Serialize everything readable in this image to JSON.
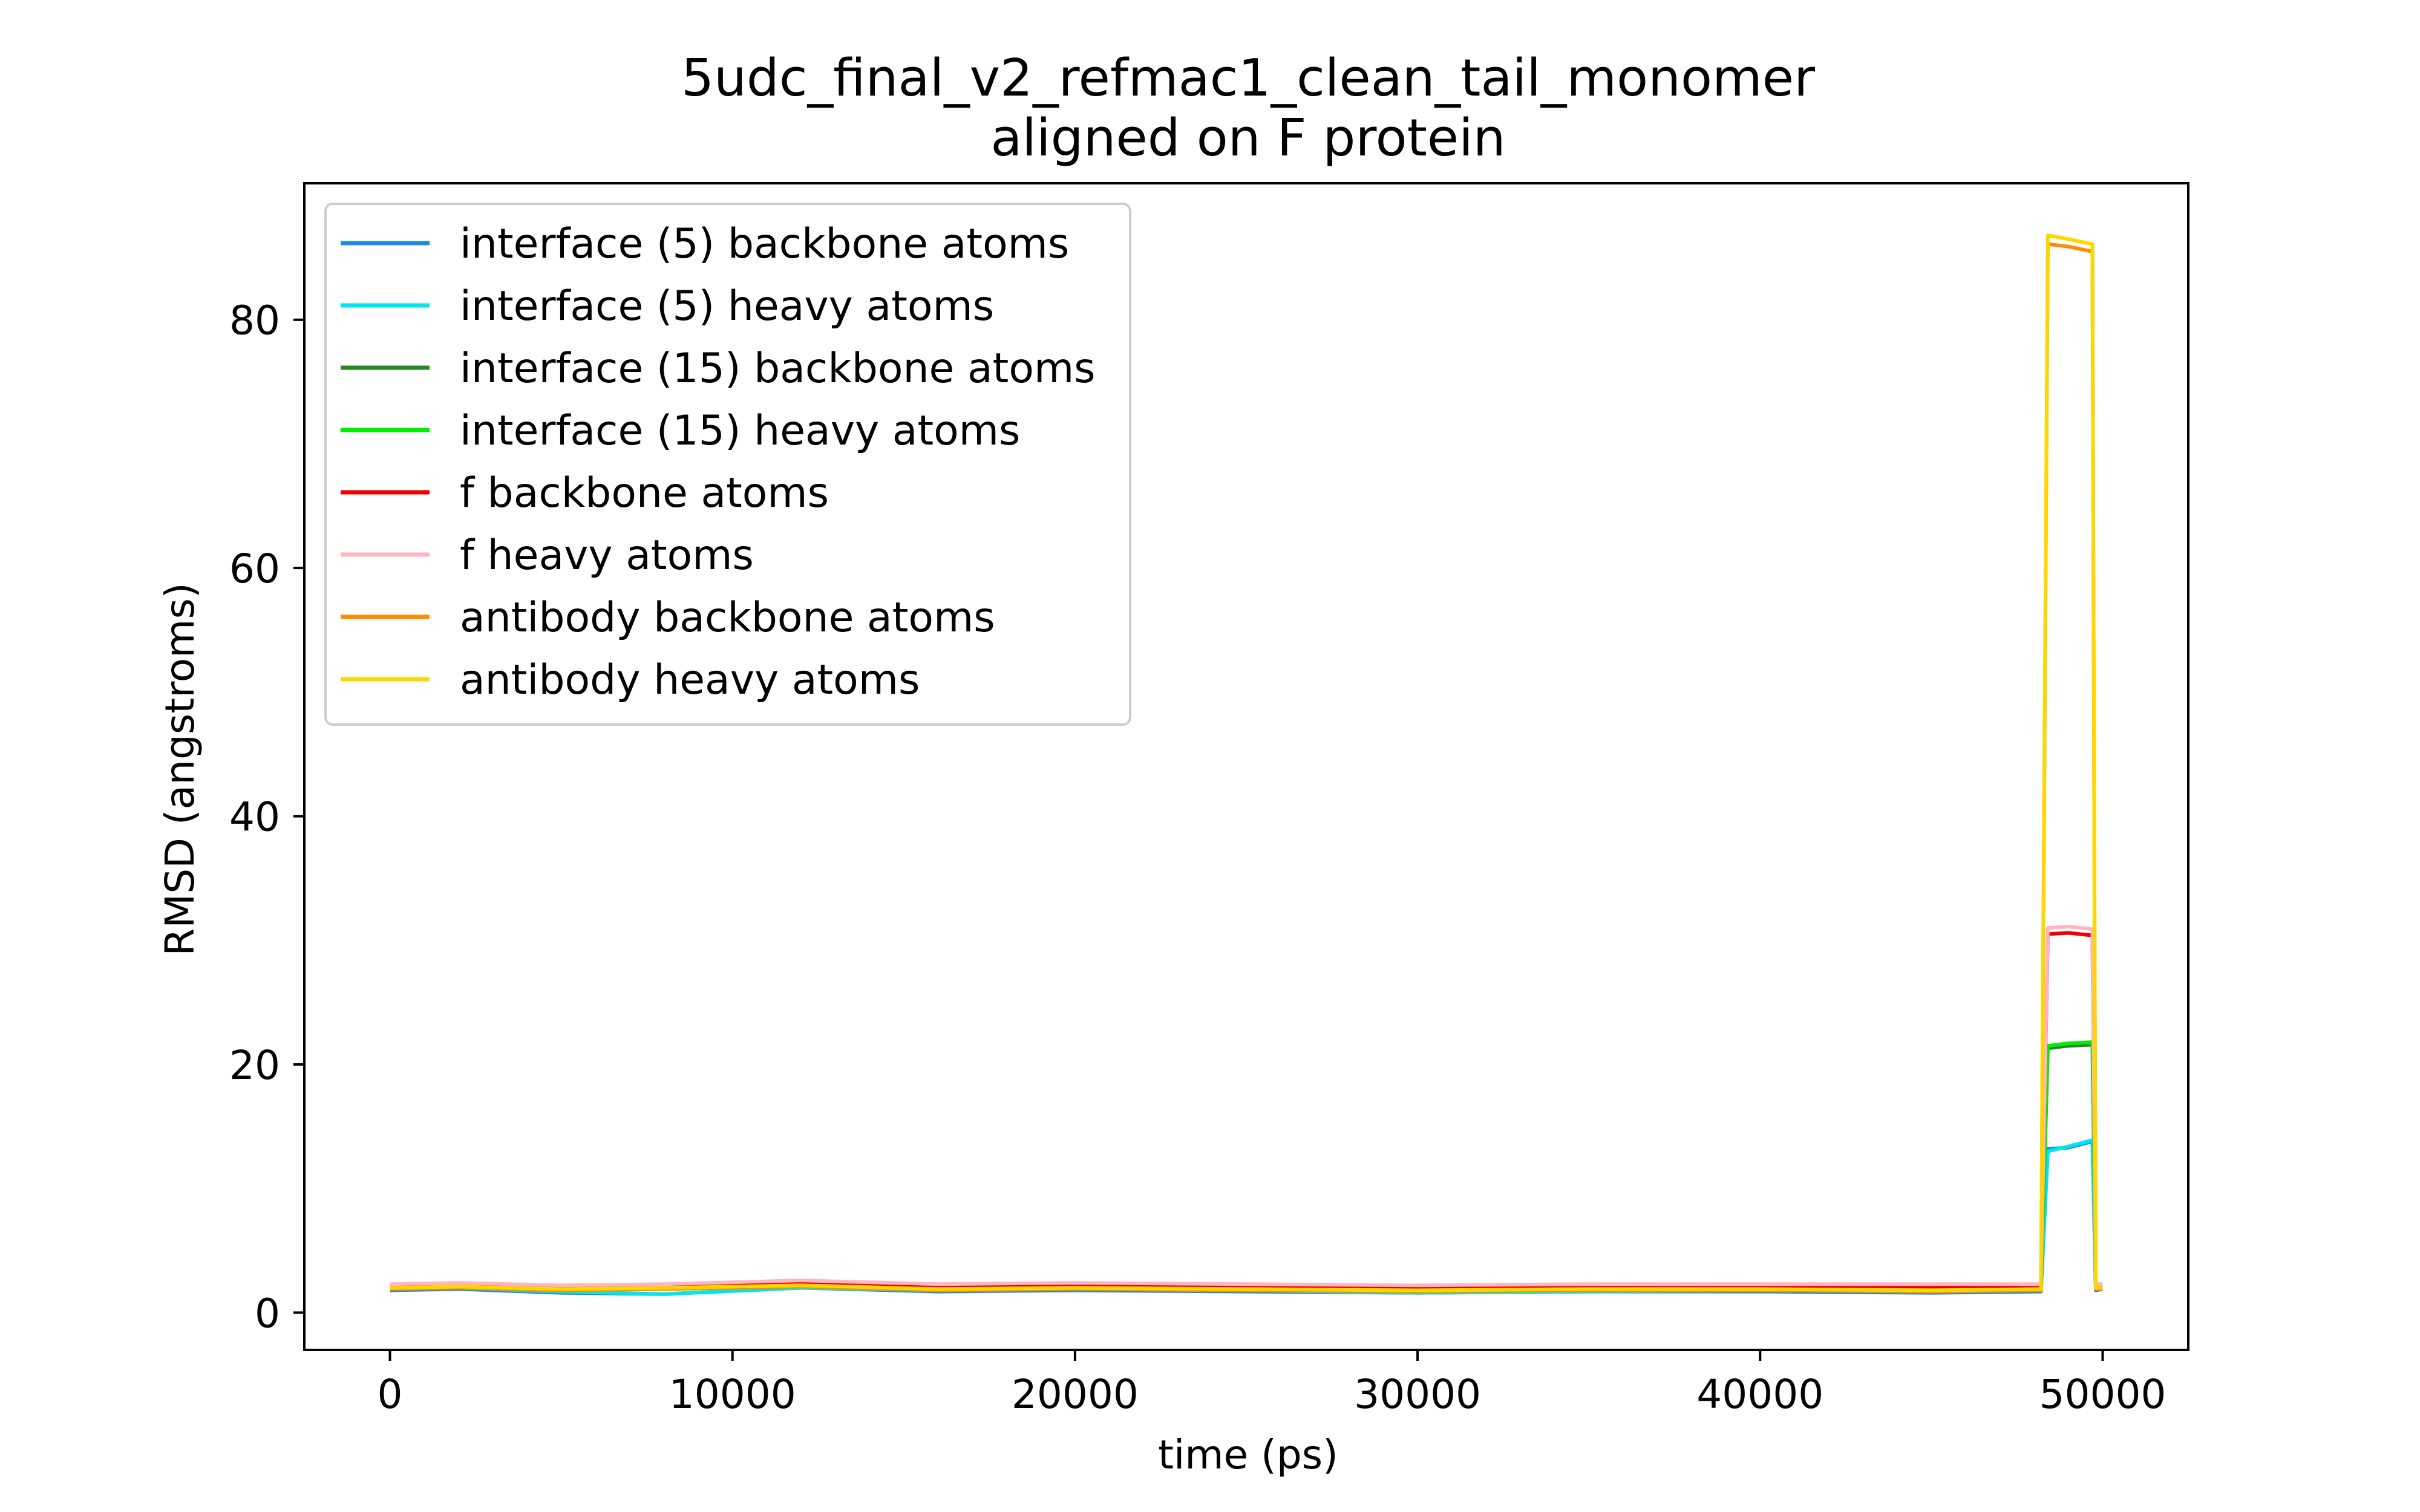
{
  "chart_data": {
    "type": "line",
    "title": "5udc_final_v2_refmac1_clean_tail_monomer",
    "subtitle": "aligned on F protein",
    "xlabel": "time (ps)",
    "ylabel": "RMSD (angstroms)",
    "xlim": [
      -2500,
      52500
    ],
    "ylim": [
      -3,
      91
    ],
    "xticks": [
      0,
      10000,
      20000,
      30000,
      40000,
      50000
    ],
    "yticks": [
      0,
      20,
      40,
      60,
      80
    ],
    "grid": false,
    "legend_position": "upper left",
    "series": [
      {
        "name": "interface (5) backbone atoms",
        "color": "#1e88e5",
        "x": [
          0,
          2000,
          5000,
          8000,
          12000,
          16000,
          20000,
          25000,
          30000,
          35000,
          40000,
          45000,
          48200,
          48400,
          49000,
          49700,
          49800,
          50000
        ],
        "y": [
          1.8,
          1.9,
          1.6,
          1.5,
          2.0,
          1.7,
          1.8,
          1.7,
          1.6,
          1.7,
          1.7,
          1.6,
          1.7,
          13.2,
          13.3,
          13.8,
          1.8,
          1.9
        ]
      },
      {
        "name": "interface (5) heavy atoms",
        "color": "#00e5ee",
        "x": [
          0,
          2000,
          5000,
          8000,
          12000,
          16000,
          20000,
          25000,
          30000,
          35000,
          40000,
          45000,
          48200,
          48400,
          49000,
          49700,
          49800,
          50000
        ],
        "y": [
          1.9,
          2.0,
          1.7,
          1.5,
          2.0,
          1.8,
          1.9,
          1.8,
          1.6,
          1.7,
          1.8,
          1.7,
          1.8,
          13.0,
          13.4,
          13.9,
          1.9,
          2.0
        ]
      },
      {
        "name": "interface (15) backbone atoms",
        "color": "#228b22",
        "x": [
          0,
          2000,
          5000,
          8000,
          12000,
          16000,
          20000,
          25000,
          30000,
          35000,
          40000,
          45000,
          48200,
          48400,
          49000,
          49700,
          49800,
          50000
        ],
        "y": [
          2.0,
          2.1,
          1.9,
          1.9,
          2.2,
          2.0,
          2.0,
          1.9,
          1.9,
          1.9,
          1.9,
          1.9,
          1.9,
          21.3,
          21.5,
          21.6,
          2.0,
          2.0
        ]
      },
      {
        "name": "interface (15) heavy atoms",
        "color": "#00ee00",
        "x": [
          0,
          2000,
          5000,
          8000,
          12000,
          16000,
          20000,
          25000,
          30000,
          35000,
          40000,
          45000,
          48200,
          48400,
          49000,
          49700,
          49800,
          50000
        ],
        "y": [
          2.1,
          2.2,
          2.0,
          2.0,
          2.3,
          2.1,
          2.1,
          2.0,
          2.0,
          2.0,
          2.0,
          2.0,
          2.0,
          21.5,
          21.7,
          21.8,
          2.1,
          2.1
        ]
      },
      {
        "name": "f backbone atoms",
        "color": "#ee0000",
        "x": [
          0,
          2000,
          5000,
          8000,
          12000,
          16000,
          20000,
          25000,
          30000,
          35000,
          40000,
          45000,
          48200,
          48400,
          49000,
          49700,
          49800,
          50000
        ],
        "y": [
          2.1,
          2.2,
          2.0,
          2.1,
          2.4,
          2.1,
          2.2,
          2.1,
          2.0,
          2.1,
          2.1,
          2.1,
          2.1,
          30.5,
          30.6,
          30.4,
          2.1,
          2.1
        ]
      },
      {
        "name": "f heavy atoms",
        "color": "#ffb6c1",
        "x": [
          0,
          2000,
          5000,
          8000,
          12000,
          16000,
          20000,
          25000,
          30000,
          35000,
          40000,
          45000,
          48200,
          48400,
          49000,
          49700,
          49800,
          50000
        ],
        "y": [
          2.3,
          2.4,
          2.2,
          2.3,
          2.6,
          2.3,
          2.4,
          2.3,
          2.2,
          2.3,
          2.3,
          2.3,
          2.3,
          31.0,
          31.1,
          30.9,
          2.3,
          2.3
        ]
      },
      {
        "name": "antibody backbone atoms",
        "color": "#ff8c00",
        "x": [
          0,
          2000,
          5000,
          8000,
          12000,
          16000,
          20000,
          25000,
          30000,
          35000,
          40000,
          45000,
          48200,
          48400,
          49000,
          49700,
          49800,
          50000
        ],
        "y": [
          1.9,
          2.0,
          1.8,
          1.9,
          2.1,
          1.8,
          1.9,
          1.8,
          1.7,
          1.8,
          1.8,
          1.7,
          1.8,
          86.1,
          85.9,
          85.5,
          1.9,
          1.9
        ]
      },
      {
        "name": "antibody heavy atoms",
        "color": "#ffd700",
        "x": [
          0,
          2000,
          5000,
          8000,
          12000,
          16000,
          20000,
          25000,
          30000,
          35000,
          40000,
          45000,
          48200,
          48400,
          49000,
          49700,
          49800,
          50000
        ],
        "y": [
          2.0,
          2.1,
          1.9,
          2.0,
          2.2,
          1.9,
          2.0,
          1.9,
          1.8,
          1.9,
          1.9,
          1.8,
          1.9,
          86.8,
          86.5,
          86.1,
          2.0,
          2.0
        ]
      }
    ]
  }
}
